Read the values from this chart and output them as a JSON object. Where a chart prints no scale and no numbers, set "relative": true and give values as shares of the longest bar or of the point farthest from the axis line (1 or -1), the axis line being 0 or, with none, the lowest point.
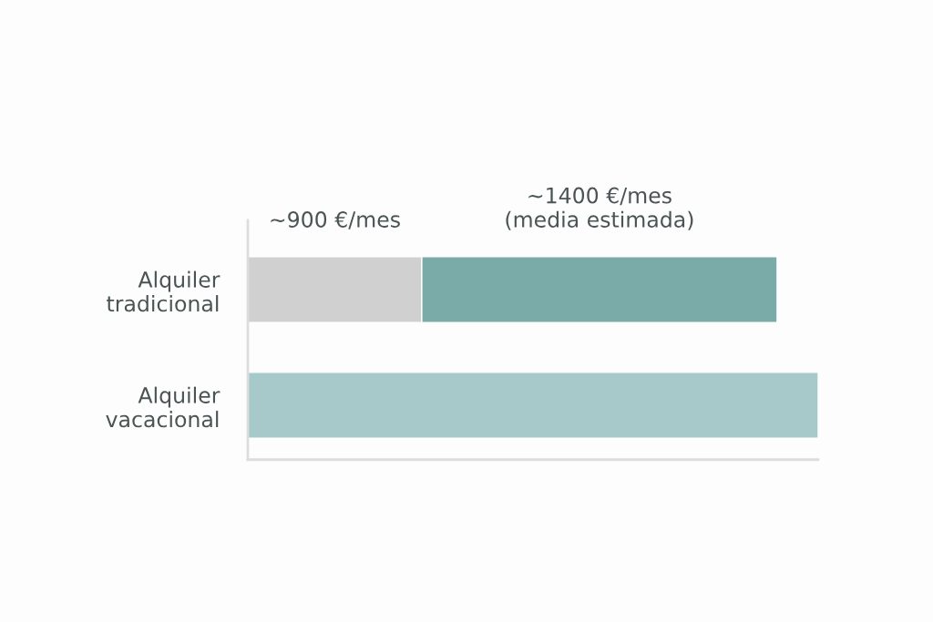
{
  "chart_data": {
    "type": "bar",
    "orientation": "horizontal",
    "stacked": true,
    "relative": true,
    "categories": [
      "Alquiler\ntradicional",
      "Alquiler\nvacacional"
    ],
    "series": [
      {
        "color": "#d0d0d0",
        "values": [
          0.305,
          null
        ]
      },
      {
        "color": "#7aaba9",
        "values": [
          0.623,
          null
        ]
      },
      {
        "color": "#a8c9c9",
        "values": [
          null,
          1.0
        ]
      }
    ],
    "annotations": [
      "~900 €/mes",
      "~1400 €/mes\n(media estimada)"
    ],
    "grid": false,
    "legend": false
  }
}
